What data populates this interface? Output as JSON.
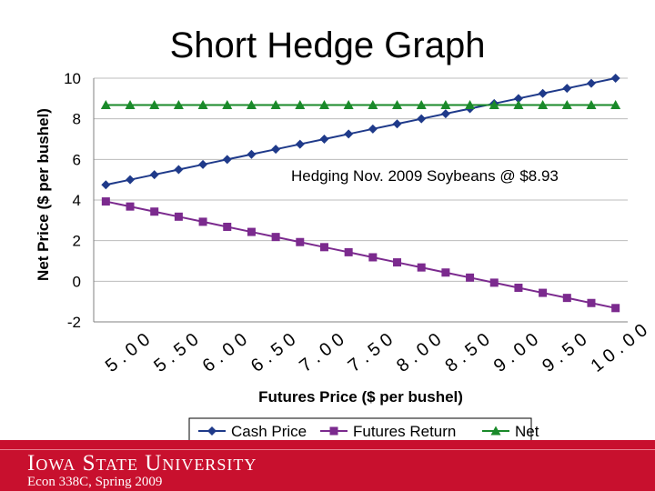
{
  "slide": {
    "title": "Short Hedge Graph",
    "footer": {
      "university": "Iowa State University",
      "course": "Econ 338C, Spring 2009"
    }
  },
  "colors": {
    "cash": "#1f3a8a",
    "futures": "#7b2a8e",
    "net": "#1a8a2a",
    "grid": "#bcbcbc",
    "footer": "#c8102e"
  },
  "chart_data": {
    "type": "line",
    "xlabel": "Futures Price ($ per bushel)",
    "ylabel": "Net Price ($ per bushel)",
    "annotation": "Hedging Nov. 2009 Soybeans @ $8.93",
    "ylim": [
      -2,
      10
    ],
    "yticks": [
      -2,
      0,
      2,
      4,
      6,
      8,
      10
    ],
    "xtick_labels": [
      "5.00",
      "5.50",
      "6.00",
      "6.50",
      "7.00",
      "7.50",
      "8.00",
      "8.50",
      "9.00",
      "9.50",
      "10.00"
    ],
    "x": [
      5.0,
      5.25,
      5.5,
      5.75,
      6.0,
      6.25,
      6.5,
      6.75,
      7.0,
      7.25,
      7.5,
      7.75,
      8.0,
      8.25,
      8.5,
      8.75,
      9.0,
      9.25,
      9.5,
      9.75,
      10.0,
      10.25
    ],
    "grid": "horizontal",
    "legend_position": "bottom",
    "series": [
      {
        "name": "Cash Price",
        "marker": "diamond",
        "values": [
          4.75,
          5.0,
          5.25,
          5.5,
          5.75,
          6.0,
          6.25,
          6.5,
          6.75,
          7.0,
          7.25,
          7.5,
          7.75,
          8.0,
          8.25,
          8.5,
          8.75,
          9.0,
          9.25,
          9.5,
          9.75,
          10.0
        ]
      },
      {
        "name": "Futures Return",
        "marker": "square",
        "values": [
          3.93,
          3.68,
          3.43,
          3.18,
          2.93,
          2.68,
          2.43,
          2.18,
          1.93,
          1.68,
          1.43,
          1.18,
          0.93,
          0.68,
          0.43,
          0.18,
          -0.07,
          -0.32,
          -0.57,
          -0.82,
          -1.07,
          -1.32
        ]
      },
      {
        "name": "Net",
        "marker": "triangle",
        "values": [
          8.68,
          8.68,
          8.68,
          8.68,
          8.68,
          8.68,
          8.68,
          8.68,
          8.68,
          8.68,
          8.68,
          8.68,
          8.68,
          8.68,
          8.68,
          8.68,
          8.68,
          8.68,
          8.68,
          8.68,
          8.68,
          8.68
        ]
      }
    ]
  }
}
